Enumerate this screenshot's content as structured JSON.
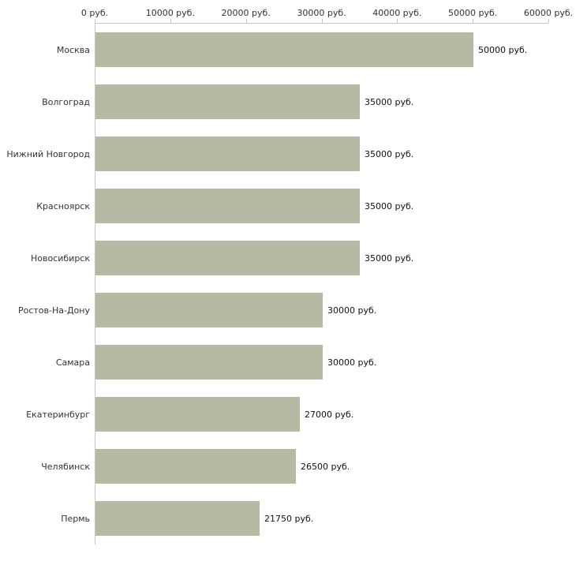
{
  "chart_data": {
    "type": "bar",
    "orientation": "horizontal",
    "title": "",
    "xlabel": "",
    "ylabel": "",
    "xlim": [
      0,
      60000
    ],
    "grid": "off",
    "legend": "none",
    "bar_color": "#b4bba2",
    "axis_color": "#c6c6c6",
    "text_color": "#333333",
    "categories": [
      "Москва",
      "Волгоград",
      "Нижний Новгород",
      "Красноярск",
      "Новосибирск",
      "Ростов-На-Дону",
      "Самара",
      "Екатеринбург",
      "Челябинск",
      "Пермь"
    ],
    "values": [
      50000,
      35000,
      35000,
      35000,
      35000,
      30000,
      30000,
      27000,
      26500,
      21750
    ],
    "value_labels": [
      "50000 руб.",
      "35000 руб.",
      "35000 руб.",
      "35000 руб.",
      "35000 руб.",
      "30000 руб.",
      "30000 руб.",
      "27000 руб.",
      "26500 руб.",
      "21750 руб."
    ],
    "x_ticks": [
      {
        "value": 0,
        "label": "0 руб."
      },
      {
        "value": 10000,
        "label": "10000 руб."
      },
      {
        "value": 20000,
        "label": "20000 руб."
      },
      {
        "value": 30000,
        "label": "30000 руб."
      },
      {
        "value": 40000,
        "label": "40000 руб."
      },
      {
        "value": 50000,
        "label": "50000 руб."
      },
      {
        "value": 60000,
        "label": "60000 руб."
      }
    ]
  }
}
